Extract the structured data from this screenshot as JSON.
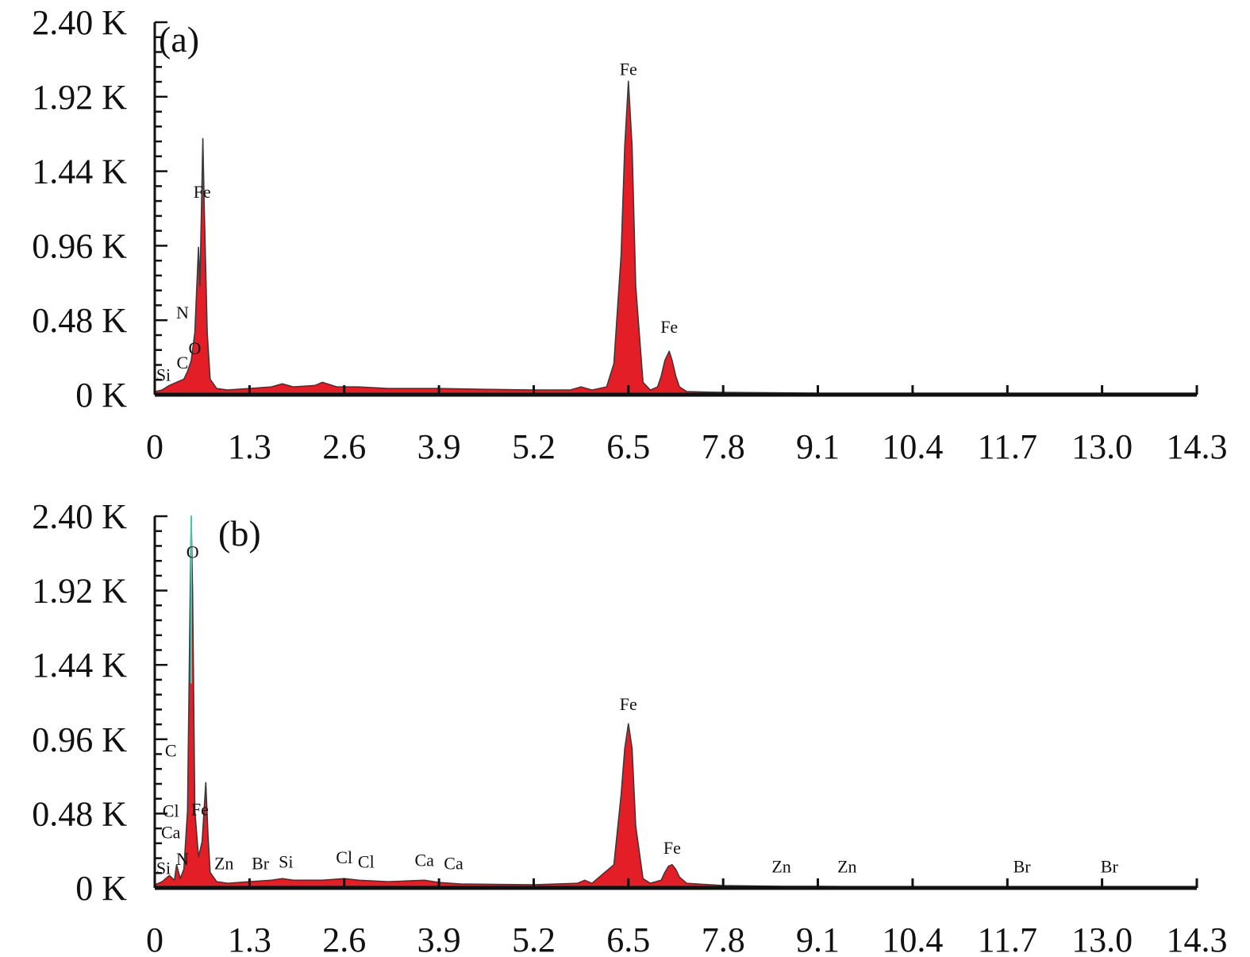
{
  "chart_data": [
    {
      "type": "area",
      "panel_label": "(a)",
      "xlabel": "",
      "ylabel": "",
      "xlim": [
        0,
        14.3
      ],
      "ylim": [
        0,
        2.4
      ],
      "x_ticks": [
        "0",
        "1.3",
        "2.6",
        "3.9",
        "5.2",
        "6.5",
        "7.8",
        "9.1",
        "10.4",
        "11.7",
        "13.0",
        "14.3"
      ],
      "y_ticks": [
        "0 K",
        "0.48 K",
        "0.96 K",
        "1.44 K",
        "1.92 K",
        "2.40 K"
      ],
      "x": [
        0.0,
        0.1,
        0.2,
        0.3,
        0.4,
        0.45,
        0.5,
        0.55,
        0.6,
        0.62,
        0.66,
        0.68,
        0.72,
        0.76,
        0.85,
        1.0,
        1.3,
        1.6,
        1.75,
        1.9,
        2.2,
        2.3,
        2.5,
        2.8,
        3.2,
        3.9,
        4.5,
        5.2,
        5.7,
        5.85,
        6.0,
        6.2,
        6.3,
        6.4,
        6.45,
        6.5,
        6.55,
        6.6,
        6.7,
        6.8,
        6.9,
        6.95,
        7.0,
        7.06,
        7.1,
        7.15,
        7.2,
        7.3,
        7.8,
        9.1,
        10.4,
        11.7,
        13.0,
        14.3
      ],
      "y": [
        0.02,
        0.03,
        0.06,
        0.08,
        0.1,
        0.15,
        0.22,
        0.4,
        0.95,
        0.7,
        1.65,
        1.2,
        0.4,
        0.1,
        0.04,
        0.03,
        0.04,
        0.05,
        0.07,
        0.05,
        0.06,
        0.08,
        0.05,
        0.05,
        0.04,
        0.04,
        0.035,
        0.03,
        0.03,
        0.05,
        0.03,
        0.05,
        0.2,
        0.9,
        1.6,
        2.02,
        1.6,
        0.7,
        0.08,
        0.03,
        0.05,
        0.12,
        0.22,
        0.28,
        0.22,
        0.12,
        0.05,
        0.02,
        0.015,
        0.01,
        0.01,
        0.01,
        0.01,
        0.01
      ],
      "annotations": [
        {
          "text": "Fe",
          "x": 0.65,
          "y": 1.27
        },
        {
          "text": "N",
          "x": 0.38,
          "y": 0.49
        },
        {
          "text": "O",
          "x": 0.55,
          "y": 0.26
        },
        {
          "text": "C",
          "x": 0.38,
          "y": 0.17
        },
        {
          "text": "Si",
          "x": 0.12,
          "y": 0.09
        },
        {
          "text": "Fe",
          "x": 6.5,
          "y": 2.06
        },
        {
          "text": "Fe",
          "x": 7.06,
          "y": 0.4
        }
      ],
      "colors": {
        "fill": "#e41e26",
        "outline": "#3a3a3a",
        "highlight": "#3fd1b6"
      }
    },
    {
      "type": "area",
      "panel_label": "(b)",
      "xlabel": "",
      "ylabel": "",
      "xlim": [
        0,
        14.3
      ],
      "ylim": [
        0,
        2.4
      ],
      "x_ticks": [
        "0",
        "1.3",
        "2.6",
        "3.9",
        "5.2",
        "6.5",
        "7.8",
        "9.1",
        "10.4",
        "11.7",
        "13.0",
        "14.3"
      ],
      "y_ticks": [
        "0 K",
        "0.48 K",
        "0.96 K",
        "1.44 K",
        "1.92 K",
        "2.40 K"
      ],
      "x": [
        0.0,
        0.1,
        0.2,
        0.27,
        0.3,
        0.35,
        0.4,
        0.45,
        0.5,
        0.52,
        0.55,
        0.6,
        0.65,
        0.7,
        0.73,
        0.76,
        0.85,
        1.0,
        1.3,
        1.6,
        1.75,
        1.9,
        2.3,
        2.6,
        2.8,
        3.2,
        3.7,
        3.9,
        4.2,
        5.2,
        5.8,
        5.9,
        6.0,
        6.3,
        6.4,
        6.45,
        6.5,
        6.55,
        6.6,
        6.7,
        6.8,
        6.95,
        7.0,
        7.05,
        7.1,
        7.15,
        7.2,
        7.3,
        7.8,
        8.6,
        9.1,
        10.4,
        11.7,
        13.0,
        14.3
      ],
      "y": [
        0.02,
        0.04,
        0.08,
        0.05,
        0.15,
        0.06,
        0.12,
        0.5,
        2.4,
        1.9,
        0.5,
        0.2,
        0.3,
        0.68,
        0.35,
        0.1,
        0.04,
        0.03,
        0.04,
        0.05,
        0.06,
        0.05,
        0.05,
        0.06,
        0.05,
        0.04,
        0.05,
        0.035,
        0.025,
        0.02,
        0.03,
        0.05,
        0.03,
        0.15,
        0.6,
        0.9,
        1.06,
        0.9,
        0.4,
        0.06,
        0.03,
        0.05,
        0.1,
        0.14,
        0.15,
        0.12,
        0.07,
        0.03,
        0.015,
        0.01,
        0.01,
        0.005,
        0.005,
        0.005,
        0.005
      ],
      "annotations": [
        {
          "text": "O",
          "x": 0.52,
          "y": 2.13
        },
        {
          "text": "C",
          "x": 0.22,
          "y": 0.85
        },
        {
          "text": "Cl",
          "x": 0.22,
          "y": 0.46
        },
        {
          "text": "Fe",
          "x": 0.62,
          "y": 0.47
        },
        {
          "text": "Ca",
          "x": 0.22,
          "y": 0.32
        },
        {
          "text": "N",
          "x": 0.38,
          "y": 0.15
        },
        {
          "text": "Si",
          "x": 0.12,
          "y": 0.09
        },
        {
          "text": "Zn",
          "x": 0.95,
          "y": 0.12
        },
        {
          "text": "Br",
          "x": 1.45,
          "y": 0.12
        },
        {
          "text": "Si",
          "x": 1.8,
          "y": 0.13
        },
        {
          "text": "Cl",
          "x": 2.6,
          "y": 0.16
        },
        {
          "text": "Cl",
          "x": 2.9,
          "y": 0.13
        },
        {
          "text": "Ca",
          "x": 3.7,
          "y": 0.14
        },
        {
          "text": "Ca",
          "x": 4.1,
          "y": 0.12
        },
        {
          "text": "Fe",
          "x": 6.5,
          "y": 1.15
        },
        {
          "text": "Fe",
          "x": 7.1,
          "y": 0.22
        },
        {
          "text": "Zn",
          "x": 8.6,
          "y": 0.1
        },
        {
          "text": "Zn",
          "x": 9.5,
          "y": 0.1
        },
        {
          "text": "Br",
          "x": 11.9,
          "y": 0.1
        },
        {
          "text": "Br",
          "x": 13.1,
          "y": 0.1
        }
      ],
      "colors": {
        "fill": "#e41e26",
        "outline": "#3a3a3a",
        "highlight": "#3fd1b6"
      }
    }
  ]
}
